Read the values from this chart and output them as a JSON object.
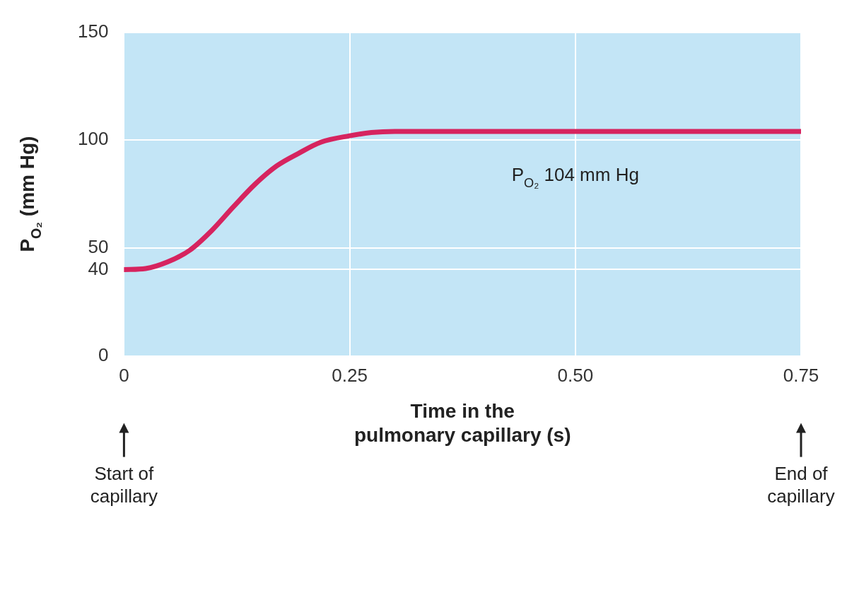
{
  "chart_data": {
    "type": "line",
    "xlabel": "Time in the\npulmonary capillary (s)",
    "ylabel": "P$_{O₂}$ (mm Hg)",
    "x": [
      0,
      0.024,
      0.048,
      0.073,
      0.097,
      0.121,
      0.145,
      0.169,
      0.194,
      0.218,
      0.25,
      0.274,
      0.3,
      0.4,
      0.5,
      0.6,
      0.75
    ],
    "series": [
      {
        "values": [
          40,
          40.5,
          43.5,
          49,
          58,
          69,
          79.5,
          88,
          94,
          99,
          102,
          103.5,
          104,
          104,
          104,
          104,
          104
        ],
        "color": "#d6245f"
      }
    ],
    "xlim": [
      0,
      0.75
    ],
    "xticks": [
      0,
      0.25,
      {
        "value": 0.5,
        "label": "0.50"
      },
      0.75
    ],
    "ylim": [
      0,
      150
    ],
    "yticks": [
      0,
      40,
      50,
      100,
      150
    ],
    "grid": true,
    "legend": false,
    "marker": "none",
    "line_style": "solid",
    "annotations": [
      {
        "text": "P$_{O₂}$ 104 mm Hg",
        "x": 0.5,
        "y": 104
      },
      "Start of capillary",
      "End of capillary"
    ]
  }
}
